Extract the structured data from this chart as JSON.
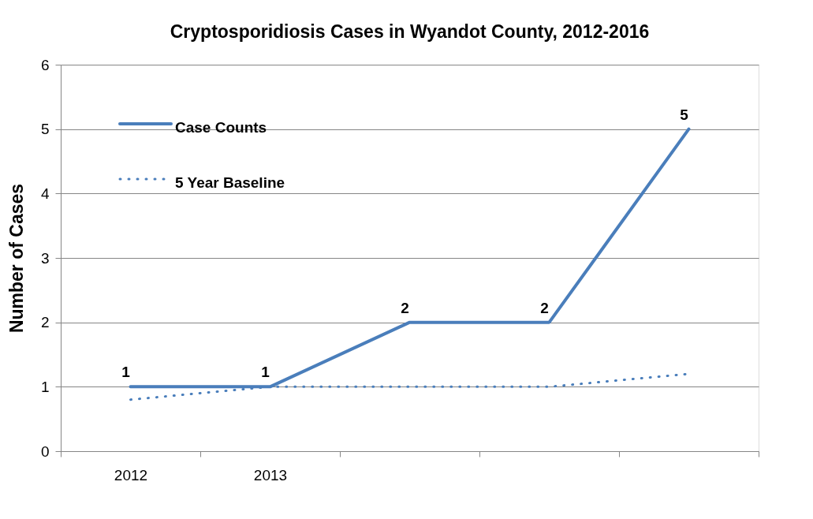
{
  "chart_data": {
    "type": "line",
    "title": "Cryptosporidiosis Cases in Wyandot County, 2012-2016",
    "ylabel": "Number of Cases",
    "categories": [
      "2012",
      "2013",
      null,
      null,
      null
    ],
    "series": [
      {
        "name": "Case Counts",
        "color": "#4a7ebb",
        "values": [
          1,
          1,
          2,
          2,
          5
        ],
        "value_labels": [
          "1",
          "1",
          "2",
          "2",
          "5"
        ],
        "line_style": "solid"
      },
      {
        "name": "5 Year Baseline",
        "color": "#4a7ebb",
        "values": [
          0.8,
          1.0,
          1.0,
          1.0,
          1.2
        ],
        "line_style": "dotted"
      }
    ],
    "ylim": [
      0,
      6
    ],
    "yticks": [
      0,
      1,
      2,
      3,
      4,
      5,
      6
    ],
    "grid": "y",
    "legend": "top left",
    "marker": "none"
  }
}
